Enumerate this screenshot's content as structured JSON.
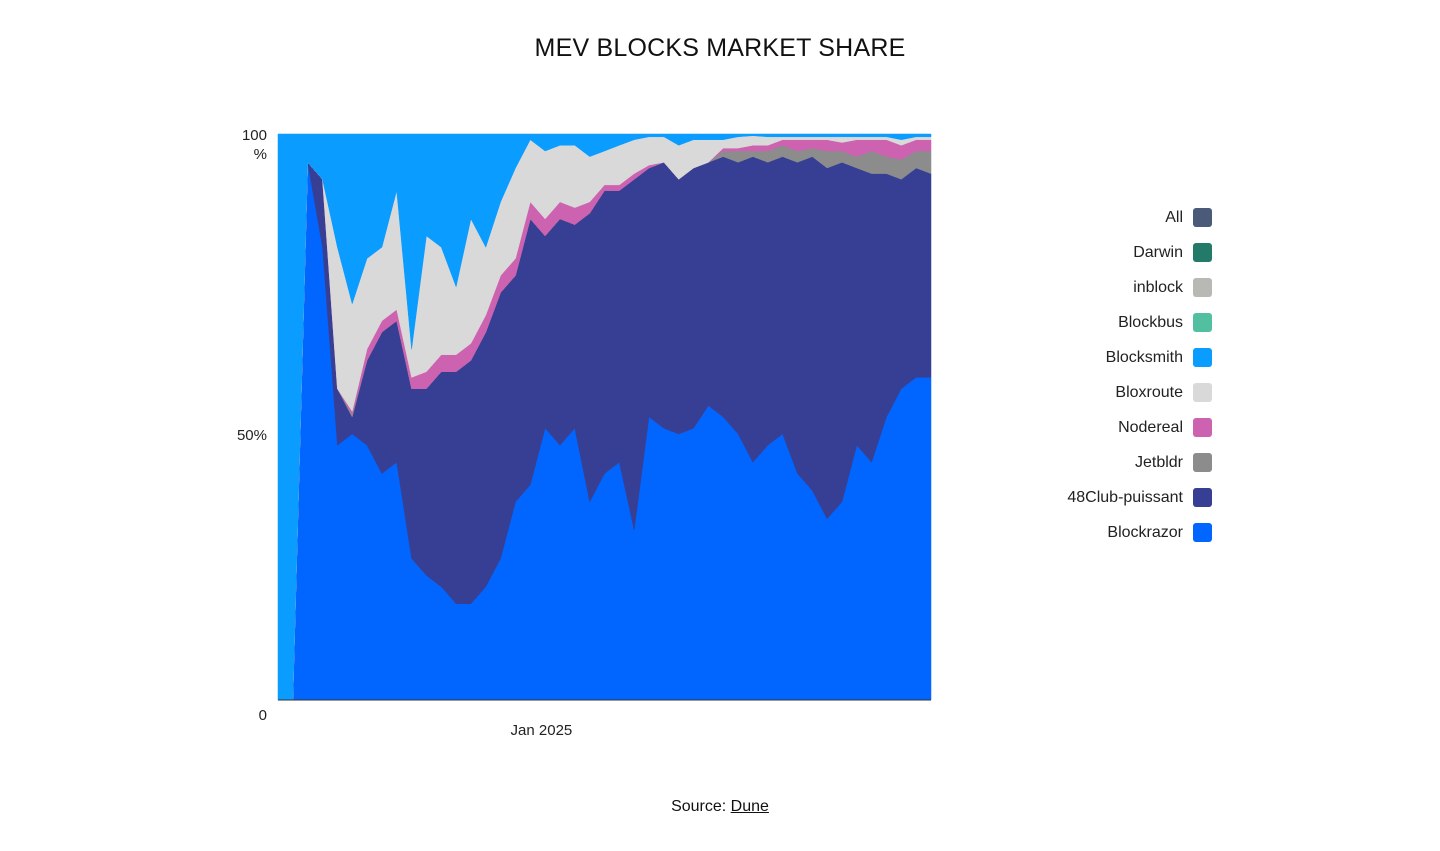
{
  "title": "MEV BLOCKS MARKET SHARE",
  "source": {
    "prefix": "Source: ",
    "link_text": "Dune"
  },
  "legend": [
    {
      "name": "All",
      "color": "#4a5a78"
    },
    {
      "name": "Darwin",
      "color": "#237a69"
    },
    {
      "name": "inblock",
      "color": "#b8b8b4"
    },
    {
      "name": "Blockbus",
      "color": "#52bfa0"
    },
    {
      "name": "Blocksmith",
      "color": "#0a9cff"
    },
    {
      "name": "Bloxroute",
      "color": "#d9d9d9"
    },
    {
      "name": "Nodereal",
      "color": "#cc62b0"
    },
    {
      "name": "Jetbldr",
      "color": "#8c8c8c"
    },
    {
      "name": "48Club-puissant",
      "color": "#363f94"
    },
    {
      "name": "Blockrazor",
      "color": "#0066ff"
    }
  ],
  "chart_data": {
    "type": "area",
    "stacked": true,
    "title": "MEV BLOCKS MARKET SHARE",
    "y_ticks": [
      "0",
      "50%",
      "100%"
    ],
    "x_ticks": [
      {
        "date": "2025-01-01",
        "label": "Jan 2025"
      }
    ],
    "ylim": [
      0,
      100
    ],
    "legend_position": "right",
    "grid": false,
    "x": [
      "2024-10-22",
      "2024-10-26",
      "2024-10-30",
      "2024-11-03",
      "2024-11-07",
      "2024-11-11",
      "2024-11-15",
      "2024-11-19",
      "2024-11-23",
      "2024-11-27",
      "2024-12-01",
      "2024-12-05",
      "2024-12-09",
      "2024-12-13",
      "2024-12-17",
      "2024-12-21",
      "2024-12-25",
      "2024-12-29",
      "2025-01-02",
      "2025-01-06",
      "2025-01-10",
      "2025-01-14",
      "2025-01-18",
      "2025-01-22",
      "2025-01-26",
      "2025-01-30",
      "2025-02-03",
      "2025-02-07",
      "2025-02-11",
      "2025-02-15",
      "2025-02-19",
      "2025-02-23",
      "2025-02-27",
      "2025-03-03",
      "2025-03-07",
      "2025-03-11",
      "2025-03-15",
      "2025-03-19",
      "2025-03-23",
      "2025-03-27",
      "2025-03-31",
      "2025-04-04",
      "2025-04-08",
      "2025-04-12",
      "2025-04-16"
    ],
    "series": [
      {
        "name": "Blockrazor",
        "color": "#0066ff",
        "values": [
          0,
          0,
          95,
          80,
          45,
          47,
          45,
          40,
          42,
          25,
          22,
          20,
          17,
          17,
          20,
          25,
          35,
          38,
          48,
          45,
          48,
          35,
          40,
          42,
          30,
          50,
          48,
          47,
          48,
          52,
          50,
          47,
          42,
          45,
          47,
          40,
          37,
          32,
          35,
          45,
          42,
          50,
          55,
          57,
          57
        ]
      },
      {
        "name": "48Club-puissant",
        "color": "#363f94",
        "values": [
          0,
          0,
          0,
          12,
          10,
          3,
          15,
          25,
          25,
          30,
          33,
          38,
          41,
          43,
          45,
          47,
          40,
          47,
          34,
          40,
          36,
          51,
          50,
          48,
          62,
          44,
          47,
          45,
          46,
          43,
          46,
          48,
          54,
          50,
          49,
          55,
          59,
          62,
          60,
          49,
          51,
          43,
          37,
          37,
          36
        ]
      },
      {
        "name": "Jetbldr",
        "color": "#8c8c8c",
        "values": [
          0,
          0,
          0,
          0,
          0,
          0.5,
          0,
          0,
          0,
          0,
          0,
          0,
          0,
          0,
          0,
          0,
          0,
          0,
          0,
          0,
          0,
          0,
          0,
          0,
          0,
          0,
          0,
          0,
          0,
          0,
          1,
          2,
          1,
          2,
          2,
          2,
          1.5,
          3,
          2,
          2,
          4,
          3,
          3.5,
          3,
          4
        ]
      },
      {
        "name": "Nodereal",
        "color": "#cc62b0",
        "values": [
          0,
          0,
          0,
          0,
          0,
          0.5,
          2,
          2,
          2,
          2,
          3,
          3,
          3,
          3,
          3,
          3,
          3,
          3,
          3,
          3,
          3,
          2,
          1,
          1,
          1,
          0.5,
          0,
          0,
          0,
          0,
          0.5,
          0.5,
          1,
          1,
          1,
          2,
          1.5,
          2,
          1.5,
          3,
          2,
          3,
          2.5,
          2,
          2
        ]
      },
      {
        "name": "Bloxroute",
        "color": "#d9d9d9",
        "values": [
          0,
          0,
          0,
          0,
          25,
          19,
          16,
          13,
          21,
          5,
          24,
          19,
          12,
          22,
          12,
          13,
          16,
          11,
          12,
          10,
          11,
          8,
          6,
          7,
          6,
          5,
          4.5,
          6,
          5,
          4,
          1.5,
          2,
          1.7,
          1.5,
          0.5,
          0.5,
          0.5,
          0.5,
          1,
          0.5,
          0.5,
          0.5,
          1,
          0.5,
          0.5
        ]
      },
      {
        "name": "Blocksmith",
        "color": "#0a9cff",
        "values": [
          100,
          100,
          5,
          8,
          20,
          30,
          22,
          20,
          10,
          38,
          18,
          20,
          27,
          15,
          20,
          12,
          6,
          1,
          3,
          2,
          2,
          4,
          3,
          2,
          1,
          0.5,
          0.5,
          2,
          1,
          1,
          1,
          0.5,
          0.3,
          0.5,
          0.5,
          0.5,
          0.5,
          0.5,
          0.5,
          0.5,
          0.5,
          0.5,
          1,
          0.5,
          0.5
        ]
      }
    ]
  }
}
